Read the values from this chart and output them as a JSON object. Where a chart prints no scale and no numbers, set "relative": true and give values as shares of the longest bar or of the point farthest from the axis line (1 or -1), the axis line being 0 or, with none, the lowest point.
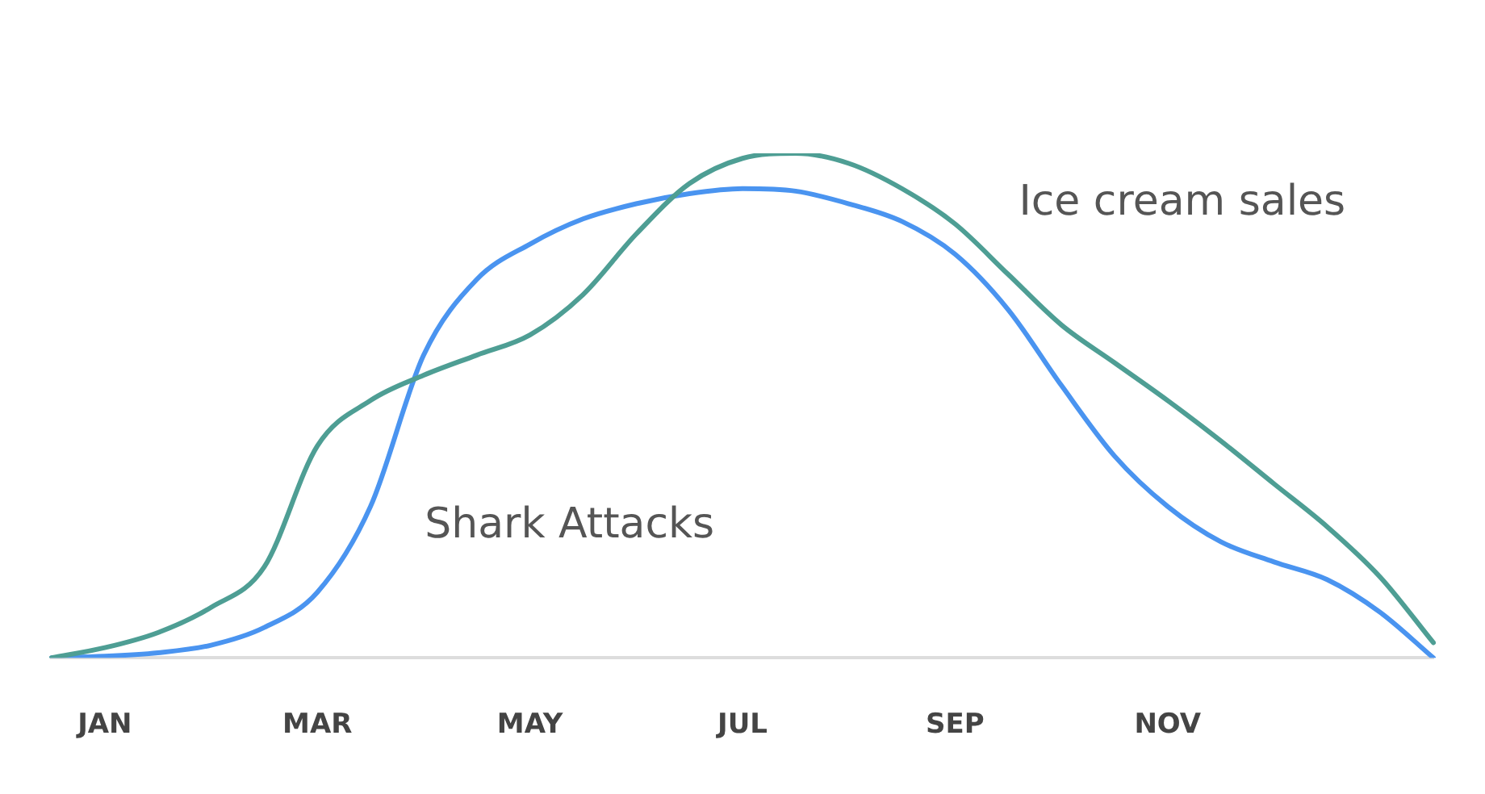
{
  "chart_data": {
    "type": "line",
    "relative": true,
    "legend": false,
    "grid": false,
    "tick_labels": "x",
    "marker": "none",
    "line_style": "solid",
    "categories": [
      null,
      "JAN",
      null,
      null,
      null,
      "MAR",
      null,
      null,
      null,
      "MAY",
      null,
      null,
      null,
      "JUL",
      null,
      null,
      null,
      "SEP",
      null,
      null,
      null,
      "NOV",
      null,
      null,
      null,
      null,
      null
    ],
    "series": [
      {
        "name": "Ice cream sales",
        "color": "#4e9e94",
        "values": [
          0,
          0.02,
          0.05,
          0.1,
          0.18,
          0.42,
          0.51,
          0.56,
          0.6,
          0.64,
          0.72,
          0.84,
          0.94,
          0.99,
          1,
          0.98,
          0.93,
          0.86,
          0.76,
          0.66,
          0.585,
          0.51,
          0.43,
          0.345,
          0.26,
          0.16,
          0.03
        ]
      },
      {
        "name": "Shark Attacks",
        "color": "#4a94f0",
        "values": [
          0,
          0.003,
          0.01,
          0.025,
          0.06,
          0.13,
          0.3,
          0.6,
          0.75,
          0.82,
          0.87,
          0.9,
          0.92,
          0.93,
          0.925,
          0.9,
          0.865,
          0.8,
          0.69,
          0.54,
          0.4,
          0.3,
          0.23,
          0.19,
          0.155,
          0.09,
          0
        ]
      }
    ]
  }
}
